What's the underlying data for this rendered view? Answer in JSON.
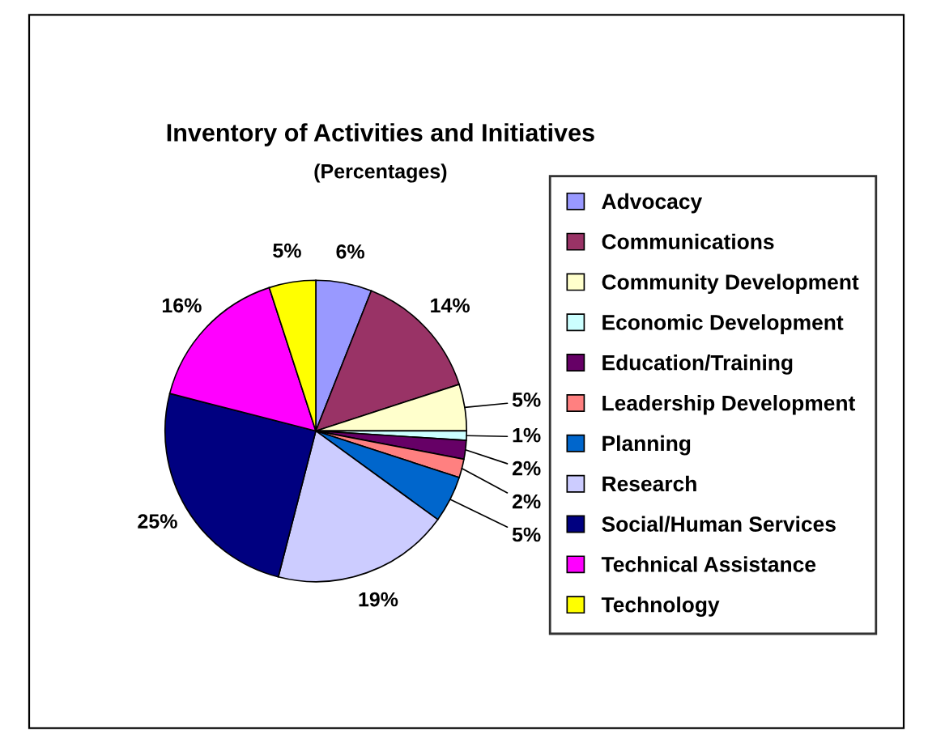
{
  "chart_data": {
    "type": "pie",
    "title": "Inventory of Activities and Initiatives",
    "subtitle": "(Percentages)",
    "categories": [
      "Advocacy",
      "Communications",
      "Community Development",
      "Economic Development",
      "Education/Training",
      "Leadership Development",
      "Planning",
      "Research",
      "Social/Human Services",
      "Technical Assistance",
      "Technology"
    ],
    "values": [
      6,
      14,
      5,
      1,
      2,
      2,
      5,
      19,
      25,
      16,
      5
    ],
    "colors": [
      "#9999ff",
      "#993366",
      "#ffffcc",
      "#ccffff",
      "#660066",
      "#ff8080",
      "#0066cc",
      "#ccccff",
      "#000080",
      "#ff00ff",
      "#ffff00"
    ],
    "value_labels": [
      "6%",
      "14%",
      "5%",
      "1%",
      "2%",
      "2%",
      "5%",
      "19%",
      "25%",
      "16%",
      "5%"
    ],
    "legend": "right"
  }
}
